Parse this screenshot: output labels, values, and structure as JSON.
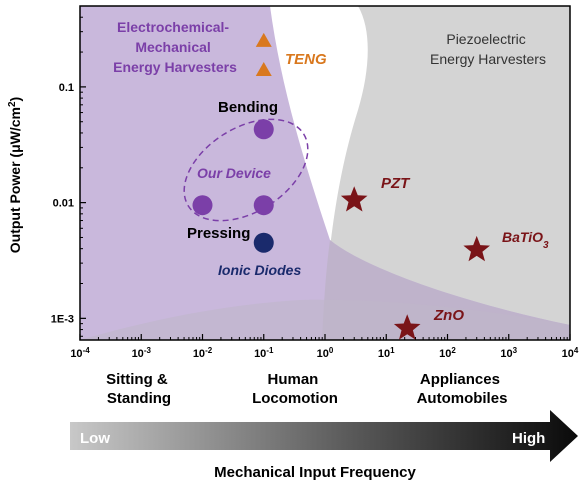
{
  "chart_data": {
    "type": "scatter",
    "x_scale": "log",
    "y_scale": "log",
    "xlim": [
      0.0001,
      10000
    ],
    "ylim": [
      0.00065,
      0.5
    ],
    "x_tick_labels": [
      {
        "mant": "10",
        "exp": "-4"
      },
      {
        "mant": "10",
        "exp": "-3"
      },
      {
        "mant": "10",
        "exp": "-2"
      },
      {
        "mant": "10",
        "exp": "-1"
      },
      {
        "mant": "10",
        "exp": "0"
      },
      {
        "mant": "10",
        "exp": "1"
      },
      {
        "mant": "10",
        "exp": "2"
      },
      {
        "mant": "10",
        "exp": "3"
      },
      {
        "mant": "10",
        "exp": "4"
      }
    ],
    "y_tick_labels": [
      "1E-3",
      "0.01",
      "0.1"
    ],
    "ylabel": {
      "main": "Output Power (",
      "mu": "μ",
      "unit": "W/cm",
      "exp": "2",
      "close": ")"
    },
    "xlabel": "Mechanical Input Frequency",
    "regions": [
      {
        "name": "Electrochemical-Mechanical Energy Harvesters",
        "lines": [
          "Electrochemical-",
          "Mechanical",
          "Energy Harvesters"
        ],
        "color": "#c9b8dc"
      },
      {
        "name": "Piezoelectric Energy Harvesters",
        "lines": [
          "Piezoelectric",
          "Energy Harvesters"
        ],
        "color": "#d4d4d4"
      }
    ],
    "series": [
      {
        "name": "Our Device",
        "marker": "circle",
        "color": "#7b3fa8",
        "points": [
          [
            0.1,
            0.043
          ],
          [
            0.01,
            0.0095
          ],
          [
            0.1,
            0.0095
          ]
        ]
      },
      {
        "name": "Ionic Diodes",
        "marker": "circle",
        "color": "#1a2a6c",
        "points": [
          [
            0.1,
            0.0045
          ]
        ]
      },
      {
        "name": "TENG",
        "marker": "triangle",
        "color": "#d9781e",
        "points": [
          [
            0.1,
            0.25
          ],
          [
            0.1,
            0.14
          ]
        ]
      },
      {
        "name": "PZT",
        "marker": "star",
        "color": "#7a1418",
        "points": [
          [
            3,
            0.0105
          ]
        ]
      },
      {
        "name": "BaTiO3",
        "marker": "star",
        "color": "#7a1418",
        "points": [
          [
            300,
            0.0039
          ]
        ]
      },
      {
        "name": "ZnO",
        "marker": "star",
        "color": "#7a1418",
        "points": [
          [
            22,
            0.00082
          ]
        ]
      }
    ],
    "annotations": {
      "teng": "TENG",
      "pzt": "PZT",
      "batio_main": "BaTiO",
      "batio_sub": "3",
      "zno": "ZnO",
      "bending": "Bending",
      "our_device": "Our Device",
      "pressing": "Pressing",
      "ionic_diodes": "Ionic Diodes"
    },
    "categories": [
      {
        "lines": [
          "Sitting &",
          "Standing"
        ]
      },
      {
        "lines": [
          "Human",
          "Locomotion"
        ]
      },
      {
        "lines": [
          "Appliances",
          "Automobiles"
        ]
      }
    ],
    "frequency_arrow": {
      "low": "Low",
      "high": "High"
    },
    "colors": {
      "our_device": "#7b3fa8",
      "ionic": "#1a2a6c",
      "teng": "#d9781e",
      "star": "#7a1418",
      "purple_text": "#7b3fa8",
      "gray_text": "#333333",
      "piezo_region": "#d4d4d4",
      "electro_region": "#c9b8dc"
    }
  }
}
